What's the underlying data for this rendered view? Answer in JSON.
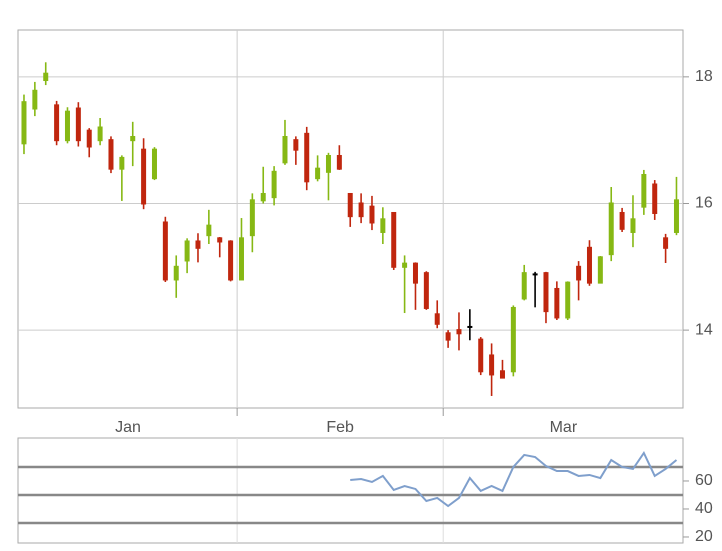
{
  "chart_data": [
    {
      "type": "candlestick",
      "categories": [
        null,
        null,
        null,
        null,
        null,
        null,
        null,
        null,
        null,
        null,
        null,
        null,
        null,
        null,
        null,
        null,
        null,
        null,
        null,
        null,
        null,
        null,
        null,
        null,
        null,
        null,
        null,
        null,
        null,
        null,
        null,
        null,
        null,
        null,
        null,
        null,
        null,
        null,
        null,
        null,
        null,
        null,
        null,
        null,
        null,
        null,
        null,
        null,
        null,
        null,
        null,
        null,
        null,
        null,
        null,
        null,
        null,
        null,
        null,
        null,
        null
      ],
      "open": [
        16.95,
        17.5,
        17.95,
        17.55,
        17.0,
        17.5,
        17.15,
        17.0,
        17.0,
        16.55,
        17.0,
        16.85,
        16.4,
        15.7,
        14.8,
        15.1,
        15.4,
        15.5,
        15.45,
        15.4,
        14.8,
        15.5,
        16.05,
        16.1,
        16.65,
        17.0,
        17.1,
        16.4,
        16.5,
        16.75,
        16.15,
        16.0,
        15.95,
        15.55,
        15.85,
        15.0,
        15.05,
        14.9,
        14.25,
        13.95,
        14.0,
        14.05,
        13.85,
        13.6,
        13.35,
        13.35,
        14.5,
        14.88,
        14.9,
        14.65,
        14.2,
        15.0,
        15.3,
        14.75,
        15.2,
        15.85,
        15.55,
        15.95,
        16.3,
        15.45,
        15.55
      ],
      "high": [
        17.72,
        17.92,
        18.23,
        17.62,
        17.52,
        17.6,
        17.19,
        17.35,
        17.06,
        16.76,
        17.29,
        17.03,
        16.89,
        15.79,
        15.18,
        15.45,
        15.53,
        15.9,
        15.47,
        15.42,
        15.77,
        16.16,
        16.58,
        16.59,
        17.32,
        17.06,
        17.21,
        16.76,
        16.8,
        16.92,
        16.16,
        16.16,
        16.12,
        15.94,
        15.86,
        15.18,
        15.07,
        14.93,
        14.47,
        14.0,
        14.28,
        14.33,
        13.89,
        13.79,
        13.53,
        14.39,
        15.03,
        14.92,
        14.92,
        14.77,
        14.77,
        15.09,
        15.42,
        15.17,
        16.26,
        15.93,
        16.13,
        16.53,
        16.37,
        15.52,
        16.42
      ],
      "low": [
        16.78,
        17.38,
        17.87,
        16.92,
        16.95,
        16.9,
        16.73,
        16.92,
        16.48,
        16.04,
        16.59,
        15.91,
        16.37,
        14.76,
        14.51,
        14.9,
        15.07,
        15.36,
        15.15,
        14.77,
        14.79,
        15.23,
        16.0,
        15.97,
        16.61,
        16.61,
        16.21,
        16.35,
        16.05,
        16.53,
        15.63,
        15.69,
        15.58,
        15.36,
        14.95,
        14.27,
        14.32,
        14.32,
        14.03,
        13.72,
        13.68,
        13.84,
        13.29,
        12.96,
        13.24,
        13.27,
        14.47,
        14.36,
        14.11,
        14.16,
        14.16,
        14.47,
        14.7,
        14.74,
        15.09,
        15.55,
        15.31,
        15.82,
        15.74,
        15.06,
        15.5
      ],
      "close": [
        17.6,
        17.78,
        18.05,
        17.0,
        17.45,
        17.0,
        16.9,
        17.2,
        16.55,
        16.72,
        17.05,
        16.0,
        16.85,
        14.8,
        15.0,
        15.4,
        15.3,
        15.65,
        15.4,
        14.8,
        15.45,
        16.05,
        16.15,
        16.5,
        17.05,
        16.85,
        16.35,
        16.55,
        16.75,
        16.55,
        15.8,
        15.8,
        15.7,
        15.75,
        15.0,
        15.05,
        14.75,
        14.35,
        14.1,
        13.85,
        13.95,
        14.05,
        13.35,
        13.3,
        13.25,
        14.35,
        14.9,
        14.88,
        14.3,
        14.2,
        14.75,
        14.8,
        14.75,
        15.15,
        16.0,
        15.6,
        15.75,
        16.45,
        15.85,
        15.3,
        16.05
      ],
      "up_color": "#86b814",
      "down_color": "#c0260e",
      "flat_color": "#000000",
      "xlim": [
        -0.55,
        60.6
      ],
      "xticks": [
        {
          "value": 9.57,
          "label": "Jan"
        },
        {
          "value": 29.07,
          "label": "Feb"
        },
        {
          "value": 49.6,
          "label": "Mar"
        }
      ],
      "xgrid": [
        19.6,
        38.55
      ],
      "ylim": [
        12.77,
        18.74
      ],
      "yticks": [
        14,
        16,
        18
      ],
      "grid": true
    },
    {
      "type": "line",
      "values": [
        null,
        null,
        null,
        null,
        null,
        null,
        null,
        null,
        null,
        null,
        null,
        null,
        null,
        null,
        null,
        null,
        null,
        null,
        null,
        null,
        null,
        null,
        null,
        null,
        null,
        null,
        null,
        null,
        null,
        null,
        60.7,
        61.4,
        59.3,
        63.6,
        53.6,
        56.4,
        54.3,
        45.7,
        47.9,
        42.1,
        47.9,
        62.1,
        52.9,
        56.4,
        52.9,
        70,
        78.6,
        77.1,
        70.7,
        67.1,
        67.1,
        63.6,
        64.3,
        62.1,
        75,
        70,
        68.6,
        80,
        63.6,
        68.6,
        75
      ],
      "color": "#7f9fcc",
      "xlim": [
        -0.55,
        60.6
      ],
      "xgrid": [
        19.6,
        38.55
      ],
      "ylim": [
        15.7,
        90.7
      ],
      "yticks": [
        20,
        40,
        60
      ],
      "hlines": [
        30,
        50,
        70
      ]
    }
  ]
}
